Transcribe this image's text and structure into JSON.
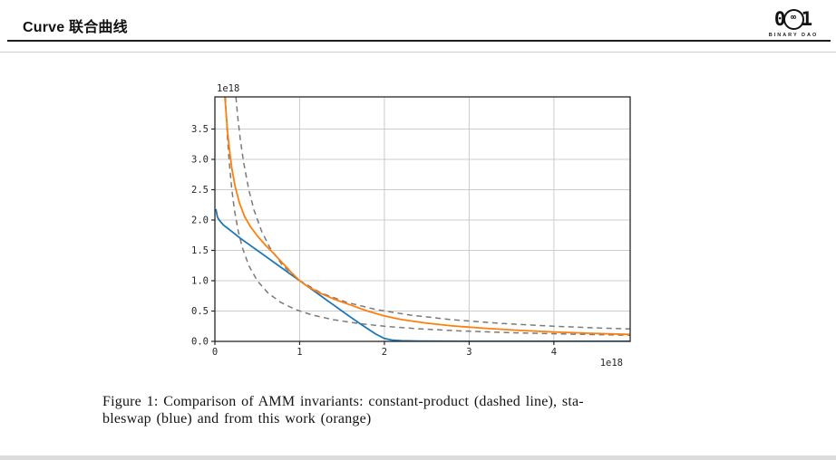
{
  "header": {
    "title": "Curve 联合曲线"
  },
  "logo": {
    "glyph_left": "0",
    "glyph_infinity": "∞",
    "glyph_right": "1",
    "text": "BINARY DAO"
  },
  "figure_caption": {
    "line1": "Figure 1:  Comparison of AMM invariants:  constant-product (dashed line), sta-",
    "line2": "bleswap (blue) and from this work (orange)"
  },
  "chart_data": {
    "type": "line",
    "title": "",
    "xlabel": "",
    "ylabel": "",
    "x_offset_label": "1e18",
    "y_offset_label": "1e18",
    "xlim": [
      0,
      4.9
    ],
    "ylim": [
      0,
      4.03
    ],
    "x_ticks": [
      0,
      1,
      2,
      3,
      4
    ],
    "x_tick_labels": [
      "0",
      "1",
      "2",
      "3",
      "4"
    ],
    "y_ticks": [
      0,
      0.5,
      1.0,
      1.5,
      2.0,
      2.5,
      3.0,
      3.5
    ],
    "y_tick_labels": [
      "0.0",
      "0.5",
      "1.0",
      "1.5",
      "2.0",
      "2.5",
      "3.0",
      "3.5"
    ],
    "grid": true,
    "legend": "none",
    "colors": {
      "grid": "#cccccc",
      "spine": "#262626",
      "tick_label": "#262626",
      "stableswap_blue": "#1f77b4",
      "this_work_orange": "#ff7f0e",
      "constant_product_gray": "#7a7a7a"
    },
    "series": [
      {
        "id": "constant-product-outer",
        "name": "constant-product xy=1 (dashed)",
        "style": "dashed",
        "color": "#7a7a7a",
        "width": 1.5,
        "points": [
          [
            0.248,
            4.03
          ],
          [
            0.27,
            3.7
          ],
          [
            0.3,
            3.33
          ],
          [
            0.34,
            2.94
          ],
          [
            0.4,
            2.5
          ],
          [
            0.46,
            2.17
          ],
          [
            0.55,
            1.82
          ],
          [
            0.65,
            1.54
          ],
          [
            0.8,
            1.25
          ],
          [
            1.0,
            1.0
          ],
          [
            1.25,
            0.8
          ],
          [
            1.55,
            0.645
          ],
          [
            1.9,
            0.526
          ],
          [
            2.3,
            0.435
          ],
          [
            2.8,
            0.357
          ],
          [
            3.4,
            0.294
          ],
          [
            4.0,
            0.25
          ],
          [
            4.5,
            0.222
          ],
          [
            4.9,
            0.204
          ]
        ]
      },
      {
        "id": "constant-product-inner",
        "name": "constant-product xy=0.5 (dashed)",
        "style": "dashed",
        "color": "#7a7a7a",
        "width": 1.5,
        "points": [
          [
            0.124,
            4.03
          ],
          [
            0.135,
            3.7
          ],
          [
            0.15,
            3.33
          ],
          [
            0.17,
            2.94
          ],
          [
            0.2,
            2.5
          ],
          [
            0.23,
            2.17
          ],
          [
            0.275,
            1.82
          ],
          [
            0.325,
            1.54
          ],
          [
            0.4,
            1.25
          ],
          [
            0.5,
            1.0
          ],
          [
            0.625,
            0.8
          ],
          [
            0.775,
            0.645
          ],
          [
            0.95,
            0.526
          ],
          [
            1.15,
            0.435
          ],
          [
            1.4,
            0.357
          ],
          [
            1.7,
            0.294
          ],
          [
            2.0,
            0.25
          ],
          [
            2.4,
            0.208
          ],
          [
            2.9,
            0.172
          ],
          [
            3.5,
            0.143
          ],
          [
            4.2,
            0.119
          ],
          [
            4.9,
            0.102
          ]
        ]
      },
      {
        "id": "stableswap",
        "name": "stableswap (blue)",
        "style": "solid",
        "color": "#1f77b4",
        "width": 1.8,
        "points": [
          [
            0.012,
            2.18
          ],
          [
            0.03,
            2.05
          ],
          [
            0.05,
            2.0
          ],
          [
            0.1,
            1.92
          ],
          [
            0.2,
            1.81
          ],
          [
            0.3,
            1.7
          ],
          [
            0.4,
            1.6
          ],
          [
            0.5,
            1.5
          ],
          [
            0.6,
            1.4
          ],
          [
            0.7,
            1.3
          ],
          [
            0.8,
            1.2
          ],
          [
            0.9,
            1.1
          ],
          [
            1.0,
            1.0
          ],
          [
            1.1,
            0.9
          ],
          [
            1.2,
            0.8
          ],
          [
            1.3,
            0.7
          ],
          [
            1.4,
            0.6
          ],
          [
            1.5,
            0.5
          ],
          [
            1.6,
            0.4
          ],
          [
            1.7,
            0.305
          ],
          [
            1.8,
            0.21
          ],
          [
            1.9,
            0.12
          ],
          [
            2.0,
            0.048
          ],
          [
            2.1,
            0.019
          ],
          [
            2.2,
            0.011
          ],
          [
            2.4,
            0.005
          ],
          [
            2.7,
            0.003
          ],
          [
            3.2,
            0.002
          ],
          [
            4.0,
            0.001
          ],
          [
            4.9,
            0.001
          ]
        ]
      },
      {
        "id": "this-work",
        "name": "from this work (orange)",
        "style": "solid",
        "color": "#ff7f0e",
        "width": 1.8,
        "points": [
          [
            0.118,
            4.03
          ],
          [
            0.13,
            3.8
          ],
          [
            0.15,
            3.45
          ],
          [
            0.17,
            3.18
          ],
          [
            0.2,
            2.85
          ],
          [
            0.24,
            2.55
          ],
          [
            0.29,
            2.28
          ],
          [
            0.35,
            2.06
          ],
          [
            0.42,
            1.89
          ],
          [
            0.5,
            1.74
          ],
          [
            0.6,
            1.58
          ],
          [
            0.7,
            1.44
          ],
          [
            0.8,
            1.29
          ],
          [
            0.9,
            1.14
          ],
          [
            1.0,
            1.0
          ],
          [
            1.1,
            0.9
          ],
          [
            1.25,
            0.79
          ],
          [
            1.4,
            0.7
          ],
          [
            1.6,
            0.6
          ],
          [
            1.8,
            0.5
          ],
          [
            2.0,
            0.42
          ],
          [
            2.2,
            0.36
          ],
          [
            2.5,
            0.3
          ],
          [
            2.8,
            0.255
          ],
          [
            3.2,
            0.215
          ],
          [
            3.6,
            0.18
          ],
          [
            4.0,
            0.155
          ],
          [
            4.4,
            0.135
          ],
          [
            4.9,
            0.115
          ]
        ]
      }
    ]
  }
}
